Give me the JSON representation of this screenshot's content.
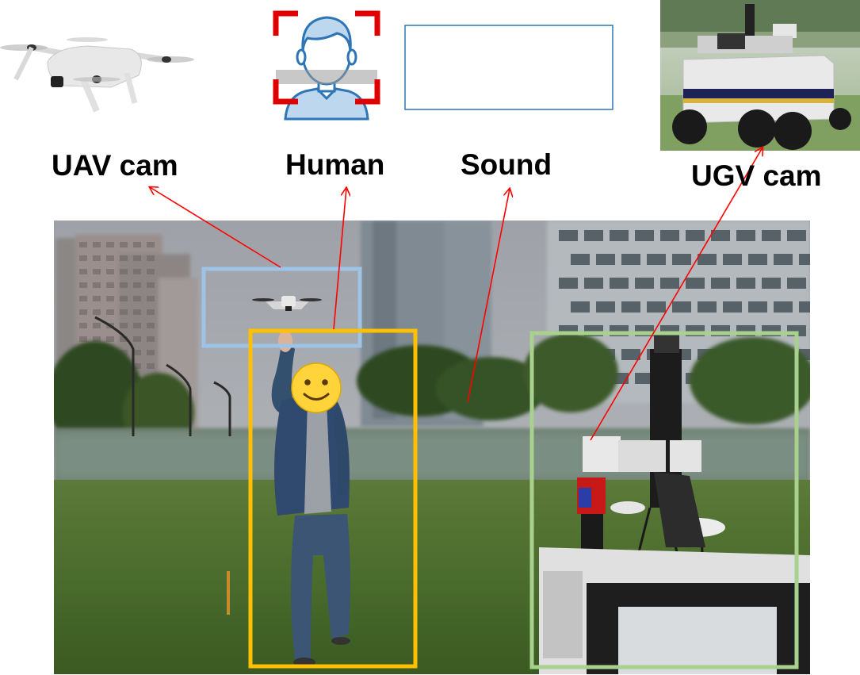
{
  "labels": {
    "uav": "UAV cam",
    "human": "Human",
    "sound": "Sound",
    "ugv": "UGV cam"
  },
  "colors": {
    "uav_box": "#9dc3e6",
    "human_box": "#ffc000",
    "ugv_box": "#a9d18e",
    "arrow": "#ff0000",
    "face_frame": "#e00000",
    "sound_frame": "#2e75b6",
    "avatar_fill": "#bdd7ee",
    "avatar_stroke": "#2e75b6"
  },
  "icons": {
    "uav": "drone-image",
    "human": "face-detect-icon",
    "sound": "waveform-icon",
    "ugv": "ugv-robot-image",
    "face_blur": "smiley-emoji"
  }
}
